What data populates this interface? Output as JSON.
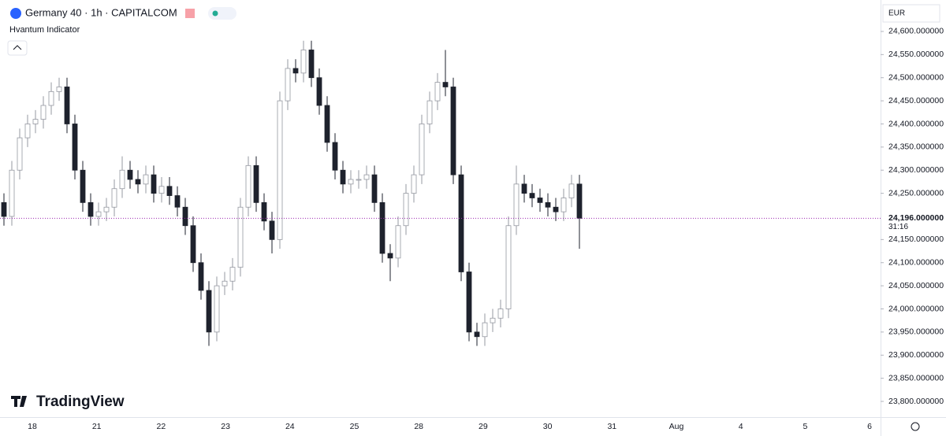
{
  "chart_data": {
    "type": "candlestick",
    "title": "Germany 40 · 1h · CAPITALCOM",
    "subtitle": "Hvantum Indicator",
    "brand": "TradingView",
    "currency": "EUR",
    "last_price": {
      "value": 24196,
      "label": "24,196.000000"
    },
    "countdown": "31:16",
    "up_color": "#ffffff",
    "down_color": "#1e222d",
    "last_line_color": "#9c27b0",
    "categories": [
      "18",
      "21",
      "22",
      "23",
      "24",
      "25",
      "28",
      "29",
      "30",
      "31",
      "Aug",
      "4",
      "5",
      "6"
    ],
    "open": [
      24230,
      24200,
      24300,
      24370,
      24400,
      24410,
      24440,
      24470,
      24480,
      24400,
      24300,
      24230,
      24200,
      24210,
      24220,
      24260,
      24300,
      24280,
      24270,
      24290,
      24250,
      24265,
      24245,
      24220,
      24180,
      24100,
      24040,
      23950,
      24050,
      24060,
      24090,
      24220,
      24310,
      24230,
      24190,
      24150,
      24450,
      24520,
      24510,
      24560,
      24500,
      24440,
      24360,
      24300,
      24270,
      24280,
      24280,
      24290,
      24230,
      24120,
      24110,
      24180,
      24250,
      24290,
      24400,
      24450,
      24490,
      24480,
      24290,
      24080,
      23950,
      23940,
      23970,
      23980,
      24000,
      24180,
      24270,
      24250,
      24240,
      24230,
      24220,
      24210,
      24240,
      24270
    ],
    "high": [
      24250,
      24320,
      24390,
      24420,
      24430,
      24460,
      24490,
      24500,
      24500,
      24420,
      24320,
      24250,
      24230,
      24240,
      24280,
      24330,
      24320,
      24300,
      24310,
      24310,
      24285,
      24285,
      24265,
      24240,
      24200,
      24120,
      24060,
      24070,
      24080,
      24110,
      24240,
      24330,
      24330,
      24250,
      24210,
      24470,
      24540,
      24540,
      24580,
      24580,
      24520,
      24460,
      24380,
      24320,
      24300,
      24300,
      24310,
      24310,
      24250,
      24140,
      24200,
      24270,
      24310,
      24420,
      24470,
      24510,
      24560,
      24500,
      24310,
      24100,
      23970,
      23990,
      24000,
      24020,
      24200,
      24310,
      24290,
      24270,
      24260,
      24250,
      24240,
      24260,
      24290,
      24290
    ],
    "low": [
      24180,
      24180,
      24280,
      24350,
      24380,
      24390,
      24420,
      24450,
      24380,
      24280,
      24210,
      24180,
      24180,
      24190,
      24200,
      24240,
      24260,
      24250,
      24250,
      24230,
      24230,
      24225,
      24200,
      24160,
      24080,
      24020,
      23920,
      23930,
      24030,
      24040,
      24070,
      24200,
      24210,
      24170,
      24120,
      24130,
      24430,
      24490,
      24490,
      24480,
      24420,
      24340,
      24280,
      24250,
      24250,
      24260,
      24260,
      24210,
      24100,
      24060,
      24090,
      24160,
      24230,
      24270,
      24380,
      24430,
      24460,
      24270,
      24060,
      23930,
      23920,
      23920,
      23950,
      23960,
      23980,
      24160,
      24230,
      24220,
      24210,
      24200,
      24190,
      24190,
      24220,
      24130
    ],
    "close": [
      24200,
      24300,
      24370,
      24400,
      24410,
      24440,
      24470,
      24480,
      24400,
      24300,
      24230,
      24200,
      24210,
      24220,
      24260,
      24300,
      24280,
      24270,
      24290,
      24250,
      24265,
      24245,
      24220,
      24180,
      24100,
      24040,
      23950,
      24050,
      24060,
      24090,
      24220,
      24310,
      24230,
      24190,
      24150,
      24450,
      24520,
      24510,
      24560,
      24500,
      24440,
      24360,
      24300,
      24270,
      24280,
      24280,
      24290,
      24230,
      24120,
      24110,
      24180,
      24250,
      24290,
      24400,
      24450,
      24490,
      24480,
      24290,
      24080,
      23950,
      23940,
      23970,
      23980,
      24000,
      24180,
      24270,
      24250,
      24240,
      24230,
      24220,
      24210,
      24240,
      24270,
      24196
    ],
    "ylim": [
      23766,
      24668
    ],
    "yticks": [
      {
        "value": 23800,
        "label": "23,800.000000"
      },
      {
        "value": 23850,
        "label": "23,850.000000"
      },
      {
        "value": 23900,
        "label": "23,900.000000"
      },
      {
        "value": 23950,
        "label": "23,950.000000"
      },
      {
        "value": 24000,
        "label": "24,000.000000"
      },
      {
        "value": 24050,
        "label": "24,050.000000"
      },
      {
        "value": 24100,
        "label": "24,100.000000"
      },
      {
        "value": 24150,
        "label": "24,150.000000"
      },
      {
        "value": 24250,
        "label": "24,250.000000"
      },
      {
        "value": 24300,
        "label": "24,300.000000"
      },
      {
        "value": 24350,
        "label": "24,350.000000"
      },
      {
        "value": 24400,
        "label": "24,400.000000"
      },
      {
        "value": 24450,
        "label": "24,450.000000"
      },
      {
        "value": 24500,
        "label": "24,500.000000"
      },
      {
        "value": 24550,
        "label": "24,550.000000"
      },
      {
        "value": 24600,
        "label": "24,600.000000"
      }
    ],
    "grid": false
  }
}
